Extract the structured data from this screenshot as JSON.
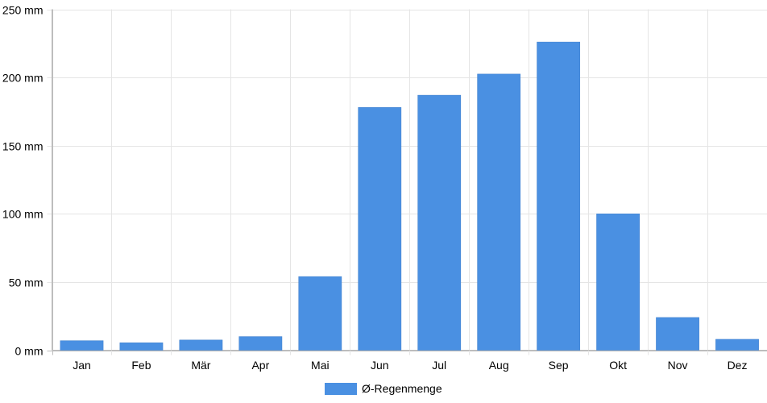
{
  "chart_data": {
    "type": "bar",
    "categories": [
      "Jan",
      "Feb",
      "Mär",
      "Apr",
      "Mai",
      "Jun",
      "Jul",
      "Aug",
      "Sep",
      "Okt",
      "Nov",
      "Dez"
    ],
    "series": [
      {
        "name": "Ø-Regenmenge",
        "values": [
          7,
          5.5,
          7.5,
          10,
          54,
          178,
          187,
          202.5,
          226,
          100,
          24,
          8
        ],
        "color": "#4a90e2"
      }
    ],
    "y_ticks": [
      "0 mm",
      "50 mm",
      "100 mm",
      "150 mm",
      "200 mm",
      "250 mm"
    ],
    "ylim": [
      0,
      250
    ],
    "y_unit": "mm",
    "grid": true,
    "legend_position": "bottom"
  }
}
